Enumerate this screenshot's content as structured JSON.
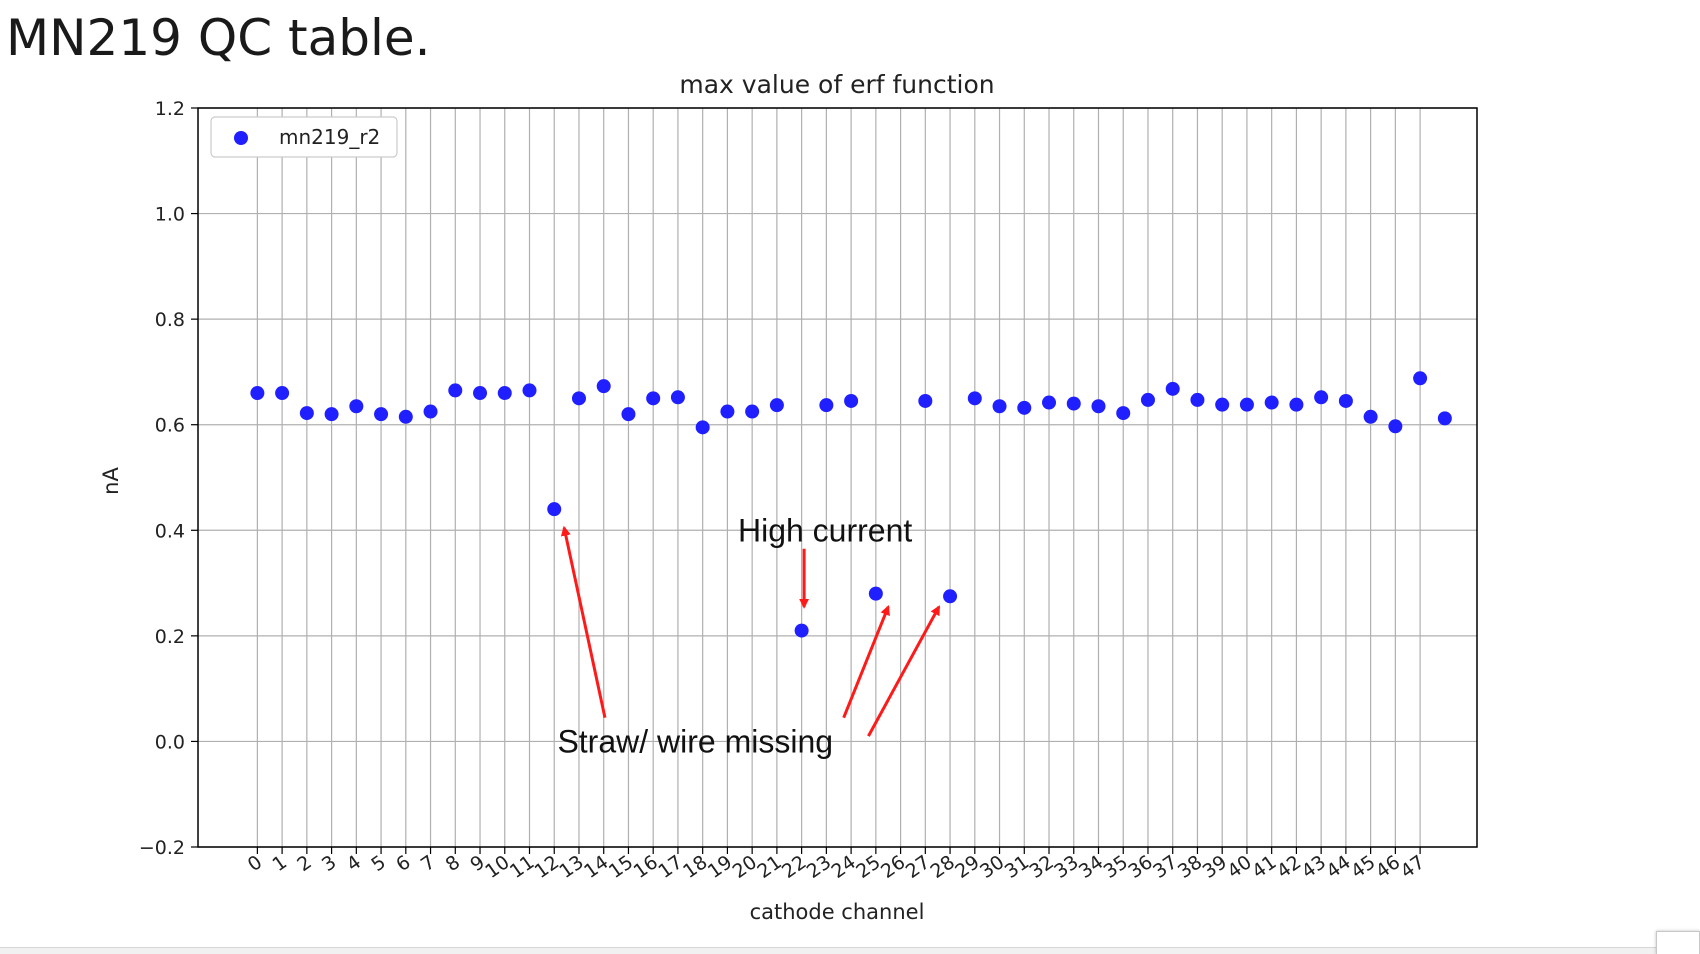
{
  "slide": {
    "title": "MN219 QC table."
  },
  "chart_data": {
    "type": "scatter",
    "title": "max value of erf function",
    "xlabel": "cathode channel",
    "ylabel": "nA",
    "ylim": [
      -0.2,
      1.2
    ],
    "xlim": [
      -2.4,
      49.3
    ],
    "yticks": [
      -0.2,
      0.0,
      0.2,
      0.4,
      0.6,
      0.8,
      1.0,
      1.2
    ],
    "ytick_labels": [
      "−0.2",
      "0.0",
      "0.2",
      "0.4",
      "0.6",
      "0.8",
      "1.0",
      "1.2"
    ],
    "xticks": [
      0,
      1,
      2,
      3,
      4,
      5,
      6,
      7,
      8,
      9,
      10,
      11,
      12,
      13,
      14,
      15,
      16,
      17,
      18,
      19,
      20,
      21,
      22,
      23,
      24,
      25,
      26,
      27,
      28,
      29,
      30,
      31,
      32,
      33,
      34,
      35,
      36,
      37,
      38,
      39,
      40,
      41,
      42,
      43,
      44,
      45,
      46,
      47
    ],
    "xtick_labels": [
      "0",
      "1",
      "2",
      "3",
      "4",
      "5",
      "6",
      "7",
      "8",
      "9",
      "10",
      "11",
      "12",
      "13",
      "14",
      "15",
      "16",
      "17",
      "18",
      "19",
      "20",
      "21",
      "22",
      "23",
      "24",
      "25",
      "26",
      "27",
      "28",
      "29",
      "30",
      "31",
      "32",
      "33",
      "34",
      "35",
      "36",
      "37",
      "38",
      "39",
      "40",
      "41",
      "42",
      "43",
      "44",
      "45",
      "46",
      "47"
    ],
    "grid": true,
    "legend_position": "top-left",
    "series": [
      {
        "name": "mn219_r2",
        "color": "#1f1fff",
        "x": [
          0,
          1,
          2,
          3,
          4,
          5,
          6,
          7,
          8,
          9,
          10,
          11,
          12,
          13,
          14,
          15,
          16,
          17,
          18,
          19,
          20,
          21,
          22,
          23,
          24,
          25,
          27,
          28,
          29,
          30,
          31,
          32,
          33,
          34,
          35,
          36,
          37,
          38,
          39,
          40,
          41,
          42,
          43,
          44,
          45,
          46,
          47,
          48
        ],
        "y": [
          0.66,
          0.66,
          0.622,
          0.62,
          0.635,
          0.62,
          0.615,
          0.625,
          0.665,
          0.66,
          0.66,
          0.665,
          0.44,
          0.65,
          0.673,
          0.62,
          0.65,
          0.652,
          0.595,
          0.625,
          0.625,
          0.637,
          0.21,
          0.637,
          0.645,
          0.28,
          0.645,
          0.275,
          0.65,
          0.635,
          0.632,
          0.642,
          0.64,
          0.635,
          0.622,
          0.647,
          0.668,
          0.647,
          0.638,
          0.638,
          0.642,
          0.638,
          0.652,
          0.645,
          0.615,
          0.597,
          0.688,
          0.612
        ]
      }
    ],
    "annotations": [
      {
        "text": "High current",
        "text_x": 22.95,
        "text_y": 0.4,
        "arrows": [
          {
            "from": [
              22.1,
              0.365
            ],
            "to": [
              22.1,
              0.255
            ]
          }
        ]
      },
      {
        "text": "Straw/ wire missing",
        "text_x": 17.7,
        "text_y": 0.0,
        "arrows": [
          {
            "from": [
              14.05,
              0.045
            ],
            "to": [
              12.4,
              0.405
            ]
          },
          {
            "from": [
              23.7,
              0.045
            ],
            "to": [
              25.5,
              0.255
            ]
          },
          {
            "from": [
              24.7,
              0.01
            ],
            "to": [
              27.55,
              0.255
            ]
          }
        ]
      }
    ],
    "annotation_color": "#ff1a1a"
  }
}
